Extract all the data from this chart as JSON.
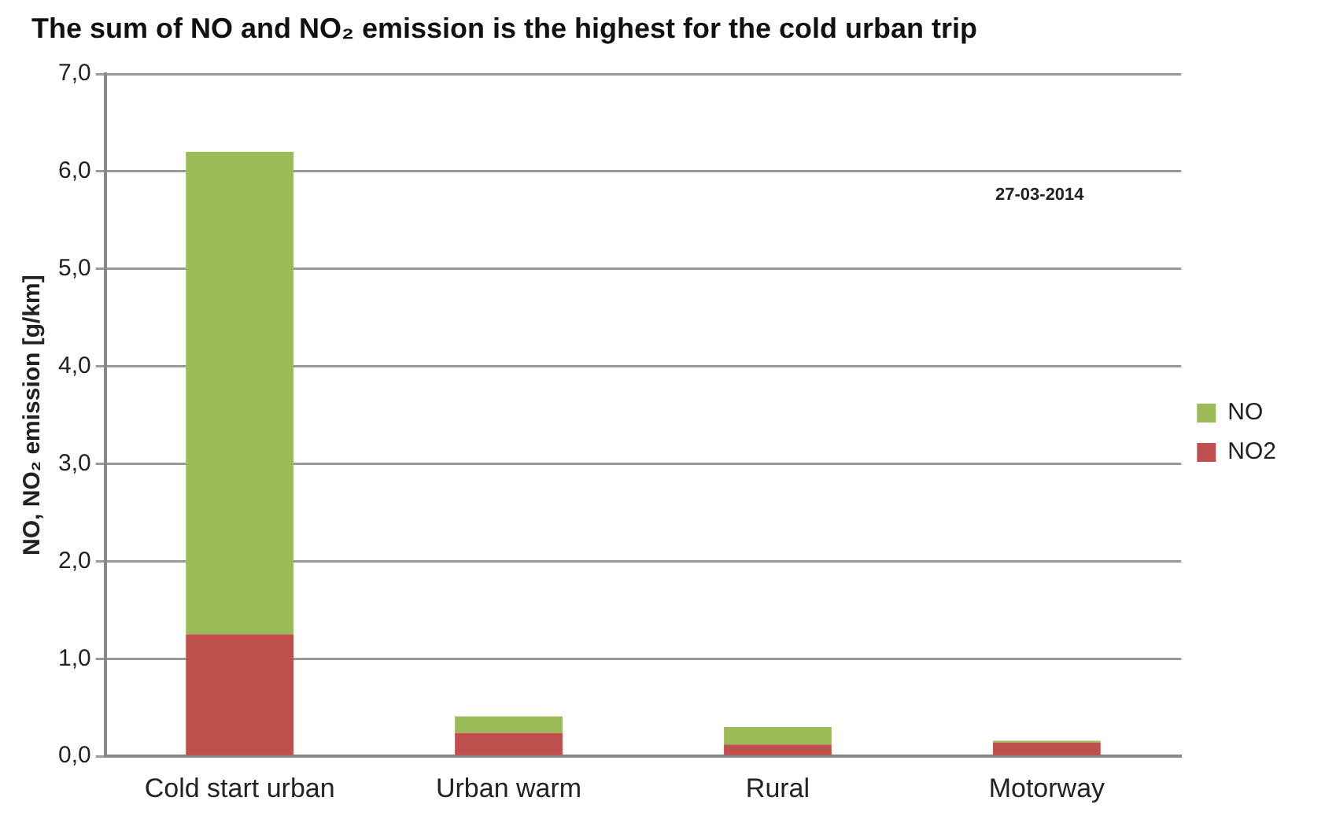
{
  "chart_data": {
    "type": "bar",
    "title": "The sum of NO and NO₂ emission is the highest for the cold urban trip",
    "ylabel": "NO, NO₂ emission [g/km]",
    "categories": [
      "Cold start urban",
      "Urban warm",
      "Rural",
      "Motorway"
    ],
    "series": [
      {
        "name": "NO2",
        "color": "#c0504d",
        "values": [
          1.25,
          0.24,
          0.12,
          0.14
        ]
      },
      {
        "name": "NO",
        "color": "#9bbb59",
        "values": [
          4.95,
          0.17,
          0.18,
          0.02
        ]
      }
    ],
    "stacked": true,
    "ylim": [
      0,
      7
    ],
    "yticks": [
      {
        "value": 0,
        "label": "0,0"
      },
      {
        "value": 1,
        "label": "1,0"
      },
      {
        "value": 2,
        "label": "2,0"
      },
      {
        "value": 3,
        "label": "3,0"
      },
      {
        "value": 4,
        "label": "4,0"
      },
      {
        "value": 5,
        "label": "5,0"
      },
      {
        "value": 6,
        "label": "6,0"
      },
      {
        "value": 7,
        "label": "7,0"
      }
    ],
    "grid": "y",
    "legend": "right",
    "annotations": [
      "27-03-2014"
    ]
  }
}
